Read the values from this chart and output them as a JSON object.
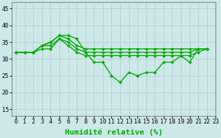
{
  "xlabel": "Humidité relative (%)",
  "x_ticks": [
    0,
    1,
    2,
    3,
    4,
    5,
    6,
    7,
    8,
    9,
    10,
    11,
    12,
    13,
    14,
    15,
    16,
    17,
    18,
    19,
    20,
    21,
    22,
    23
  ],
  "ylim": [
    13,
    47
  ],
  "yticks": [
    15,
    20,
    25,
    30,
    35,
    40,
    45
  ],
  "bg_color": "#cce8e8",
  "grid_color": "#aacccc",
  "line_color": "#00aa00",
  "marker": "D",
  "marker_size": 2,
  "line_width": 1.0,
  "xlabel_fontsize": 8,
  "tick_fontsize": 6,
  "fig_bg": "#cce8e8",
  "line1_y": [
    32,
    32,
    32,
    34,
    35,
    37,
    37,
    36,
    32,
    29,
    29,
    25,
    23,
    26,
    25,
    26,
    26,
    29,
    29,
    31,
    29,
    33,
    33
  ],
  "line2_y": [
    32,
    32,
    32,
    34,
    35,
    37,
    36,
    34,
    33,
    33,
    33,
    33,
    33,
    33,
    33,
    33,
    33,
    33,
    33,
    33,
    33,
    33,
    33
  ],
  "line3_y": [
    32,
    32,
    32,
    34,
    34,
    36,
    35,
    33,
    32,
    32,
    32,
    32,
    32,
    32,
    32,
    32,
    32,
    32,
    32,
    32,
    32,
    33,
    33
  ],
  "line4_y": [
    32,
    32,
    32,
    33,
    33,
    36,
    34,
    32,
    31,
    31,
    31,
    31,
    31,
    31,
    31,
    31,
    31,
    31,
    31,
    31,
    31,
    32,
    33
  ]
}
